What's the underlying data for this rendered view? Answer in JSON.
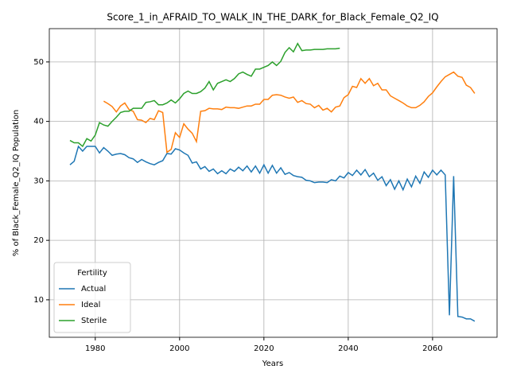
{
  "chart_data": {
    "type": "line",
    "title": "Score_1_in_AFRAID_TO_WALK_IN_THE_DARK_for_Black_Female_Q2_IQ",
    "xlabel": "Years",
    "ylabel": "% of Black_Female_Q2_IQ Population",
    "legend_title": "Fertility",
    "legend": "lower left",
    "grid": true,
    "x": [
      1974,
      1975,
      1976,
      1977,
      1978,
      1979,
      1980,
      1981,
      1982,
      1983,
      1984,
      1985,
      1986,
      1987,
      1988,
      1989,
      1990,
      1991,
      1992,
      1993,
      1994,
      1995,
      1996,
      1997,
      1998,
      1999,
      2000,
      2001,
      2002,
      2003,
      2004,
      2005,
      2006,
      2007,
      2008,
      2009,
      2010,
      2011,
      2012,
      2013,
      2014,
      2015,
      2016,
      2017,
      2018,
      2019,
      2020,
      2021,
      2022,
      2023,
      2024,
      2025,
      2026,
      2027,
      2028,
      2029,
      2030,
      2031,
      2032,
      2033,
      2034,
      2035,
      2036,
      2037,
      2038,
      2039,
      2040,
      2041,
      2042,
      2043,
      2044,
      2045,
      2046,
      2047,
      2048,
      2049,
      2050,
      2051,
      2052,
      2053,
      2054,
      2055,
      2056,
      2057,
      2058,
      2059,
      2060,
      2061,
      2062,
      2063,
      2064,
      2065,
      2066,
      2067,
      2068,
      2069,
      2070
    ],
    "xlim": [
      1969.1,
      2075.3
    ],
    "xticks": [
      1980,
      2000,
      2020,
      2040,
      2060
    ],
    "ylim": [
      3.7,
      55.6
    ],
    "yticks": [
      10,
      20,
      30,
      40,
      50
    ],
    "series": [
      {
        "name": "Actual",
        "color": "#1f77b4",
        "values": [
          32.7,
          33.3,
          35.8,
          35.0,
          35.8,
          35.8,
          35.8,
          34.7,
          35.6,
          35.0,
          34.3,
          34.5,
          34.6,
          34.4,
          33.9,
          33.7,
          33.1,
          33.6,
          33.2,
          32.9,
          32.7,
          33.1,
          33.4,
          34.6,
          34.5,
          35.4,
          35.2,
          34.7,
          34.3,
          33.0,
          33.2,
          32.0,
          32.4,
          31.6,
          32.0,
          31.2,
          31.7,
          31.2,
          32.0,
          31.6,
          32.3,
          31.7,
          32.5,
          31.5,
          32.5,
          31.3,
          32.7,
          31.3,
          32.6,
          31.3,
          32.2,
          31.1,
          31.4,
          30.9,
          30.7,
          30.6,
          30.1,
          30.0,
          29.7,
          29.8,
          29.8,
          29.7,
          30.2,
          30.0,
          30.8,
          30.5,
          31.4,
          30.9,
          31.8,
          31.0,
          31.9,
          30.7,
          31.3,
          30.1,
          30.7,
          29.2,
          30.2,
          28.6,
          30.0,
          28.5,
          30.3,
          29.0,
          30.8,
          29.6,
          31.5,
          30.6,
          31.8,
          31.0,
          31.8,
          31.0,
          7.4,
          30.8,
          7.2,
          7.1,
          6.8,
          6.8,
          6.4
        ]
      },
      {
        "name": "Ideal",
        "color": "#ff7f0e",
        "values": [
          null,
          null,
          null,
          null,
          null,
          null,
          null,
          null,
          43.4,
          43.0,
          42.5,
          41.6,
          42.6,
          43.1,
          42.0,
          41.7,
          40.3,
          40.2,
          39.8,
          40.5,
          40.3,
          41.8,
          41.5,
          34.8,
          35.3,
          38.1,
          37.3,
          39.6,
          38.7,
          38.0,
          36.6,
          41.7,
          41.8,
          42.2,
          42.1,
          42.1,
          42.0,
          42.4,
          42.3,
          42.3,
          42.2,
          42.4,
          42.6,
          42.6,
          42.9,
          42.9,
          43.7,
          43.7,
          44.4,
          44.5,
          44.4,
          44.1,
          43.9,
          44.1,
          43.2,
          43.5,
          43.0,
          42.9,
          42.3,
          42.7,
          41.9,
          42.2,
          41.6,
          42.4,
          42.6,
          44.0,
          44.5,
          45.9,
          45.7,
          47.2,
          46.4,
          47.2,
          46.0,
          46.4,
          45.3,
          45.3,
          44.3,
          43.9,
          43.5,
          43.1,
          42.6,
          42.3,
          42.3,
          42.7,
          43.3,
          44.2,
          44.8,
          45.8,
          46.7,
          47.5,
          47.9,
          48.3,
          47.6,
          47.4,
          46.1,
          45.7,
          44.7
        ]
      },
      {
        "name": "Sterile",
        "color": "#2ca02c",
        "values": [
          36.8,
          36.4,
          36.4,
          35.8,
          37.1,
          36.7,
          37.7,
          39.8,
          39.4,
          39.2,
          40.0,
          40.7,
          41.5,
          41.7,
          41.7,
          42.2,
          42.2,
          42.2,
          43.2,
          43.3,
          43.5,
          42.8,
          42.8,
          43.1,
          43.6,
          43.1,
          43.8,
          44.7,
          45.1,
          44.7,
          44.7,
          45.0,
          45.6,
          46.7,
          45.3,
          46.4,
          46.7,
          47.0,
          46.7,
          47.2,
          48.0,
          48.3,
          47.9,
          47.6,
          48.8,
          48.8,
          49.1,
          49.4,
          50.0,
          49.4,
          50.1,
          51.6,
          52.4,
          51.7,
          53.1,
          51.9,
          52.0,
          52.0,
          52.1,
          52.1,
          52.1,
          52.2,
          52.2,
          52.2,
          52.3,
          null,
          null,
          null,
          null,
          null,
          null,
          null,
          null,
          null,
          null,
          null,
          null,
          null,
          null,
          null,
          null,
          null,
          null,
          null,
          null,
          null,
          null,
          null,
          null,
          null,
          null,
          null,
          null,
          null,
          null,
          null,
          null
        ]
      }
    ]
  }
}
